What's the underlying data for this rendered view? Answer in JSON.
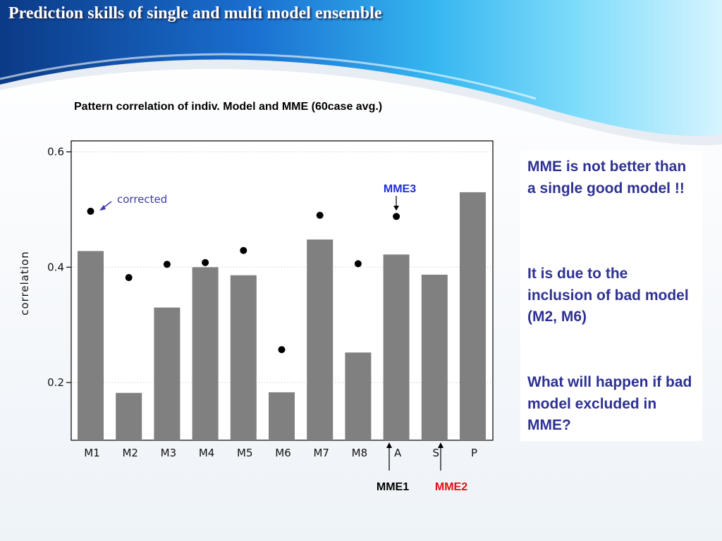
{
  "slide": {
    "title": "Prediction skills of single and multi model ensemble",
    "chart_caption": "Pattern correlation of indiv. Model and MME (60case avg.)"
  },
  "colors": {
    "bar": "#808080",
    "dot": "#000000",
    "note_text": "#2e3192",
    "mme3_label": "#1f2fd0",
    "mme1_label": "#000000",
    "mme2_label": "#e01010",
    "corrected_label": "#3a3aa8"
  },
  "chart_data": {
    "type": "bar",
    "categories": [
      "M1",
      "M2",
      "M3",
      "M4",
      "M5",
      "M6",
      "M7",
      "M8",
      "A",
      "S",
      "P"
    ],
    "ylabel": "correlation",
    "xlabel": "",
    "ylim": [
      0.1,
      0.62
    ],
    "yticks": [
      0.2,
      0.4,
      0.6
    ],
    "ytick_labels": [
      "0.2",
      "0.4",
      "0.6"
    ],
    "grid": "horizontal dotted",
    "series": [
      {
        "type": "bar",
        "values": [
          0.428,
          0.182,
          0.33,
          0.4,
          0.386,
          0.183,
          0.448,
          0.252,
          0.422,
          0.387,
          0.53
        ]
      },
      {
        "type": "scatter",
        "values": [
          0.497,
          0.382,
          0.405,
          0.408,
          0.429,
          0.257,
          0.49,
          0.406,
          0.488,
          null,
          null
        ]
      }
    ],
    "annotations": {
      "corrected": "corrected",
      "mme1": "MME1",
      "mme2": "MME2",
      "mme3": "MME3"
    }
  },
  "notes": [
    "MME is not better than a single good model !!",
    "It is due to the inclusion of bad model (M2, M6)",
    "What will happen if bad model excluded in MME?"
  ]
}
